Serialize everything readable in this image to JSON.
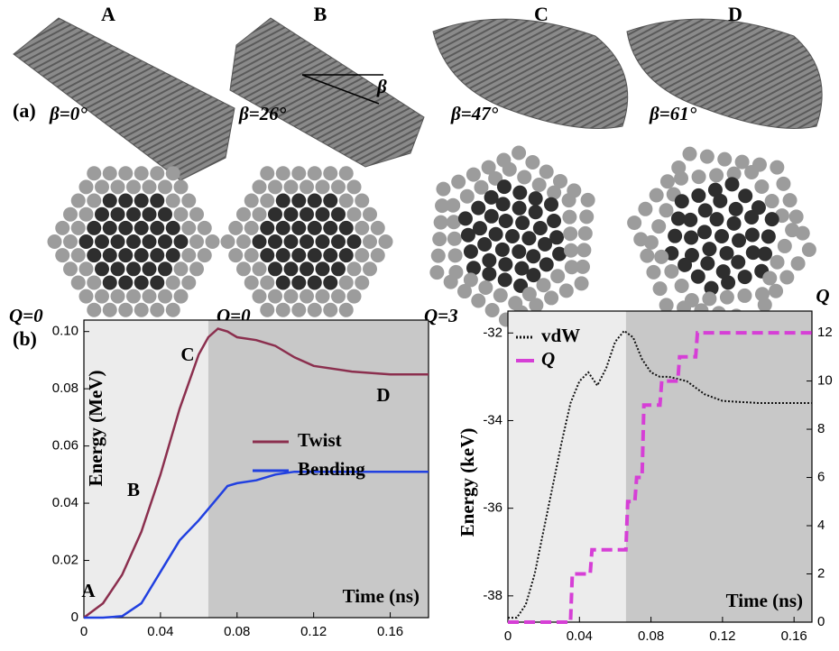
{
  "panel_a": {
    "label": "(a)",
    "columns": [
      {
        "letter": "A",
        "angle": "β=0°",
        "q": "Q=0"
      },
      {
        "letter": "B",
        "angle": "β=26°",
        "q": "Q=0"
      },
      {
        "letter": "C",
        "angle": "β=47°",
        "q": "Q=3"
      },
      {
        "letter": "D",
        "angle": "β=61°",
        "q": ""
      }
    ],
    "beta_symbol": "β"
  },
  "panel_b_label": "(b)",
  "chart_data": [
    {
      "type": "line",
      "ylabel": "Energy (MeV)",
      "xlabel": "Time (ns)",
      "x": [
        0,
        0.01,
        0.02,
        0.03,
        0.04,
        0.05,
        0.06,
        0.065,
        0.07,
        0.075,
        0.08,
        0.09,
        0.1,
        0.11,
        0.12,
        0.14,
        0.16,
        0.18
      ],
      "series": [
        {
          "name": "Twist",
          "color": "#8b2f4e",
          "style": "solid",
          "values": [
            0,
            0.005,
            0.015,
            0.03,
            0.05,
            0.073,
            0.092,
            0.098,
            0.101,
            0.1,
            0.098,
            0.097,
            0.095,
            0.091,
            0.088,
            0.086,
            0.085,
            0.085
          ]
        },
        {
          "name": "Bending",
          "color": "#2140e0",
          "style": "solid",
          "values": [
            0,
            0,
            0.0005,
            0.005,
            0.016,
            0.027,
            0.034,
            0.038,
            0.042,
            0.046,
            0.047,
            0.048,
            0.05,
            0.051,
            0.051,
            0.051,
            0.051,
            0.051
          ]
        }
      ],
      "annotations": [
        "A",
        "B",
        "C",
        "D"
      ],
      "xlim": [
        0,
        0.18
      ],
      "xticks": [
        0,
        0.04,
        0.08,
        0.12,
        0.16
      ],
      "ylim": [
        0,
        0.104
      ],
      "yticks": [
        0,
        0.02,
        0.04,
        0.06,
        0.08,
        {
          "value": 0.1,
          "label": "0.10"
        }
      ],
      "shaded_regions": [
        {
          "from": 0,
          "to": 0.065,
          "color": "#ececec"
        },
        {
          "from": 0.065,
          "to": 0.18,
          "color": "#c8c8c8"
        }
      ]
    },
    {
      "type": "line",
      "ylabel": "Energy (keV)",
      "y2label": "Q",
      "xlabel": "Time (ns)",
      "x": [
        0,
        0.005,
        0.01,
        0.015,
        0.02,
        0.025,
        0.03,
        0.035,
        0.04,
        0.045,
        0.05,
        0.055,
        0.06,
        0.065,
        0.07,
        0.075,
        0.08,
        0.085,
        0.09,
        0.1,
        0.11,
        0.12,
        0.14,
        0.17
      ],
      "series": [
        {
          "name": "vdW",
          "color": "#111111",
          "style": "dotted",
          "values": [
            -38.5,
            -38.5,
            -38.2,
            -37.5,
            -36.5,
            -35.5,
            -34.5,
            -33.6,
            -33.1,
            -32.9,
            -33.2,
            -32.8,
            -32.2,
            -31.95,
            -32.1,
            -32.6,
            -32.9,
            -33.0,
            -33.0,
            -33.1,
            -33.4,
            -33.55,
            -33.6,
            -33.6
          ]
        },
        {
          "name": "Q",
          "color": "#d63fd6",
          "style": "dashed",
          "axis": "y2",
          "x": [
            0,
            0.035,
            0.036,
            0.046,
            0.047,
            0.066,
            0.067,
            0.071,
            0.072,
            0.075,
            0.076,
            0.085,
            0.086,
            0.095,
            0.096,
            0.105,
            0.106,
            0.11,
            0.14,
            0.17
          ],
          "values": [
            0,
            0,
            2,
            2,
            3,
            3,
            5,
            5,
            6,
            6,
            9,
            9,
            10,
            10,
            11,
            11,
            12,
            12,
            12,
            12
          ]
        }
      ],
      "xlim": [
        0,
        0.17
      ],
      "xticks": [
        0,
        0.04,
        0.08,
        0.12,
        0.16
      ],
      "ylim": [
        -38.6,
        -31.5
      ],
      "yticks": [
        -38,
        -36,
        -34,
        -32
      ],
      "y2lim": [
        0,
        12.9
      ],
      "y2ticks": [
        0,
        2,
        4,
        6,
        8,
        10,
        12
      ],
      "shaded_regions": [
        {
          "from": 0,
          "to": 0.066,
          "color": "#ececec"
        },
        {
          "from": 0.066,
          "to": 0.17,
          "color": "#c8c8c8"
        }
      ]
    }
  ]
}
